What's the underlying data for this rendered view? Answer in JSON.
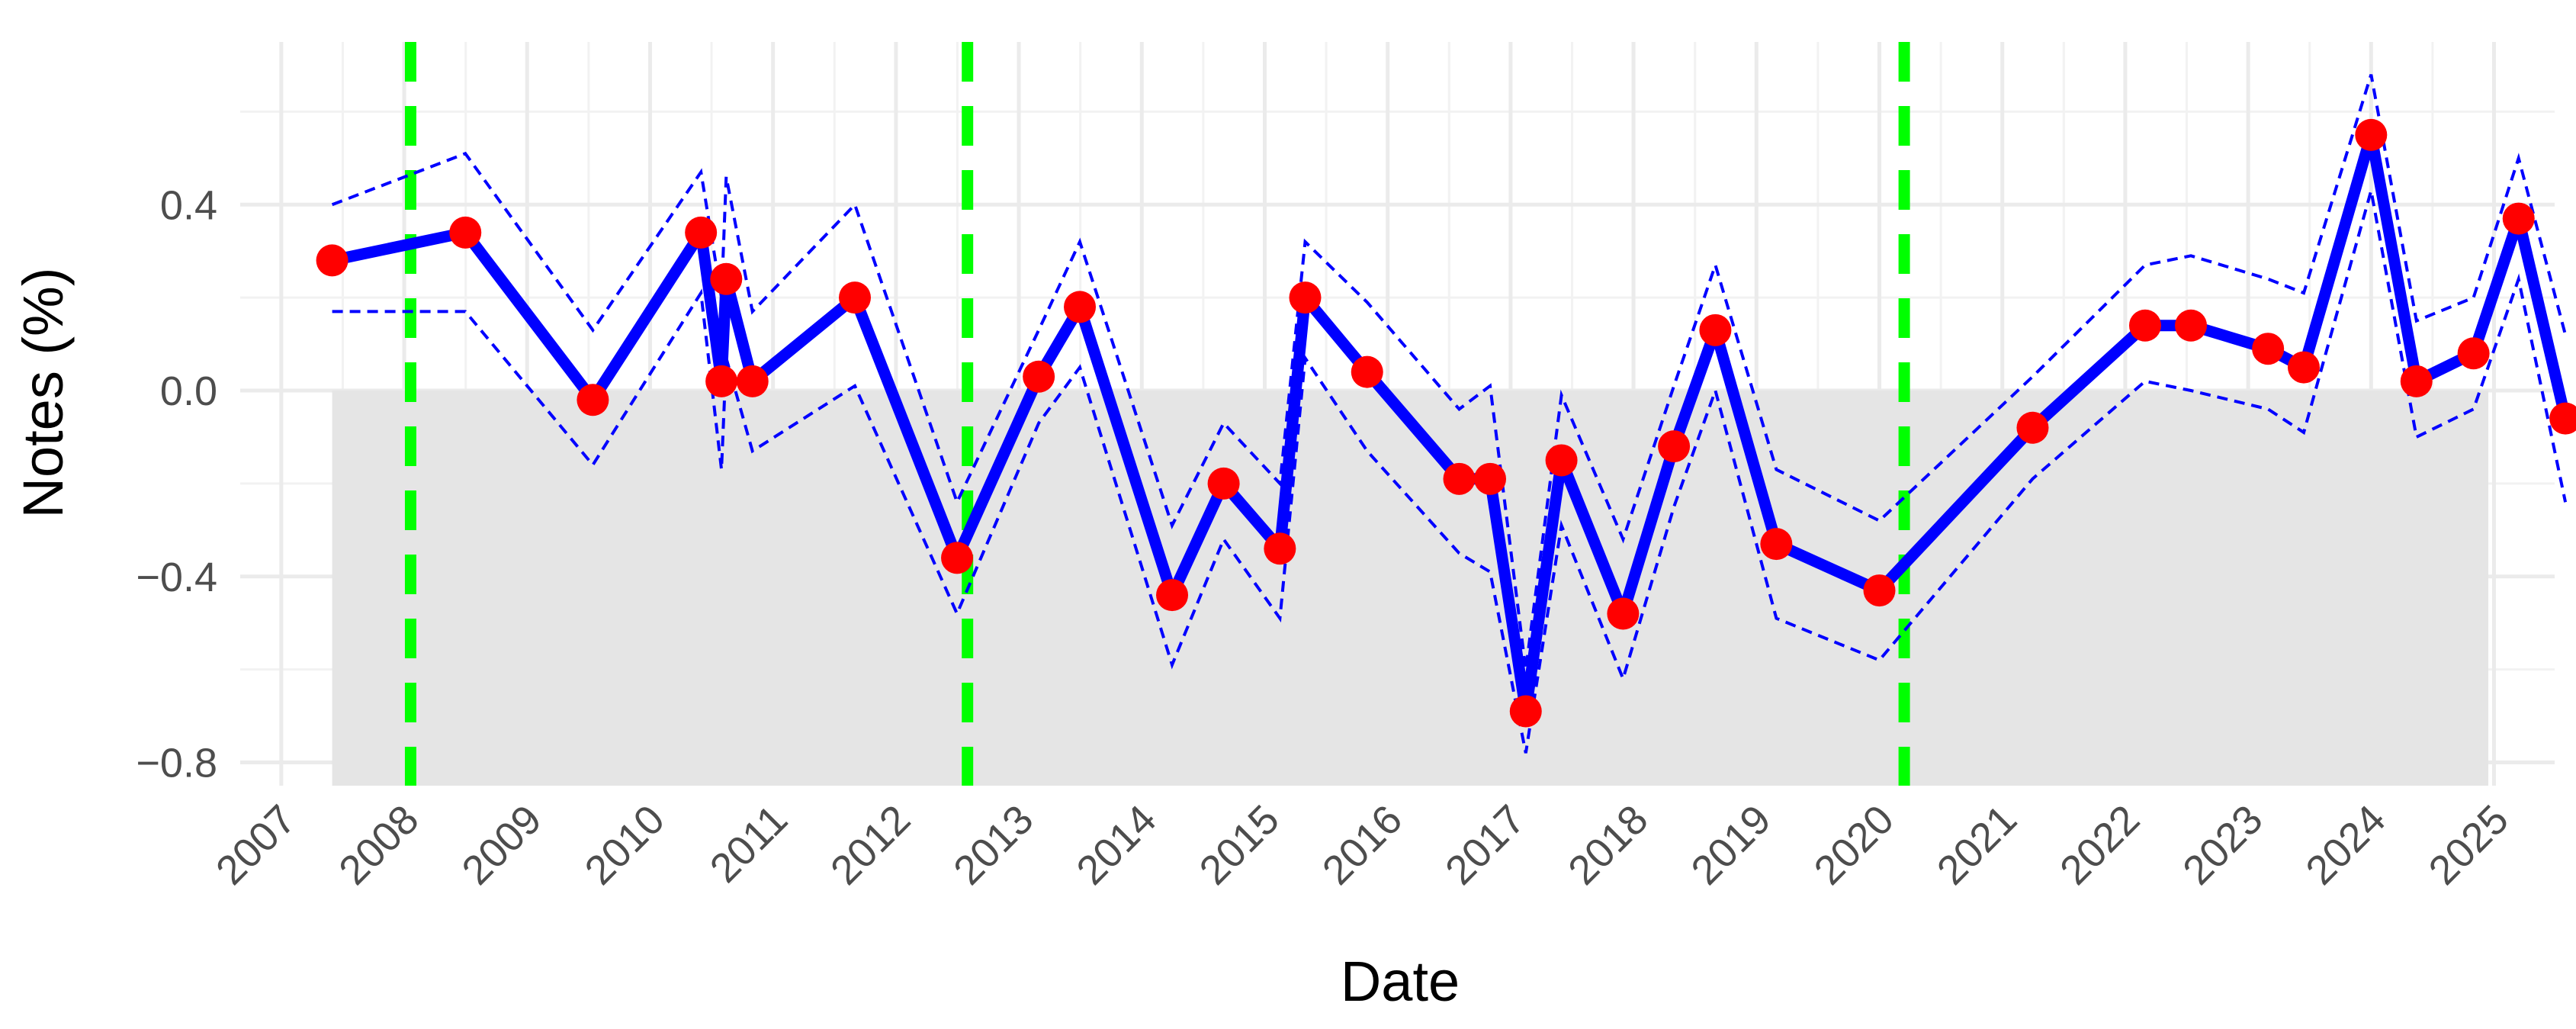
{
  "chart_data": {
    "type": "line",
    "title": "",
    "xlabel": "Date",
    "ylabel": "Notes (%)",
    "x_axis": {
      "type": "date",
      "range": [
        "2006-09-01",
        "2025-06-30"
      ],
      "ticks": [
        "2007",
        "2008",
        "2009",
        "2010",
        "2011",
        "2012",
        "2013",
        "2014",
        "2015",
        "2016",
        "2017",
        "2018",
        "2019",
        "2020",
        "2021",
        "2022",
        "2023",
        "2024",
        "2025"
      ]
    },
    "y_axis": {
      "range": [
        -0.85,
        0.75
      ],
      "ticks": [
        {
          "value": 0.4,
          "label": "0.4"
        },
        {
          "value": 0.0,
          "label": "0.0"
        },
        {
          "value": -0.4,
          "label": "−0.4"
        },
        {
          "value": -0.8,
          "label": "−0.8"
        }
      ]
    },
    "grid": true,
    "legend": "none",
    "shaded_region": {
      "y_from": -0.85,
      "y_to": 0.0,
      "x_from": "2007-06-01",
      "x_to": "2024-12-15",
      "color": "#e5e5e5"
    },
    "vertical_lines": [
      {
        "x": "2008-01-20",
        "color": "#00ff00",
        "style": "dashed"
      },
      {
        "x": "2012-08-01",
        "color": "#00ff00",
        "style": "dashed"
      },
      {
        "x": "2020-03-15",
        "color": "#00ff00",
        "style": "dashed"
      }
    ],
    "series": [
      {
        "role": "estimate",
        "color": "#0000ff",
        "marker_color": "#ff0000",
        "points": [
          [
            "2007-06-01",
            0.28
          ],
          [
            "2008-07-01",
            0.34
          ],
          [
            "2009-07-15",
            -0.02
          ],
          [
            "2010-06-01",
            0.34
          ],
          [
            "2010-08-01",
            0.02
          ],
          [
            "2010-08-15",
            0.24
          ],
          [
            "2010-11-01",
            0.02
          ],
          [
            "2011-09-01",
            0.2
          ],
          [
            "2012-07-01",
            -0.36
          ],
          [
            "2013-03-01",
            0.03
          ],
          [
            "2013-07-01",
            0.18
          ],
          [
            "2014-04-01",
            -0.44
          ],
          [
            "2014-09-01",
            -0.2
          ],
          [
            "2015-02-15",
            -0.34
          ],
          [
            "2015-05-01",
            0.2
          ],
          [
            "2015-11-01",
            0.04
          ],
          [
            "2016-08-01",
            -0.19
          ],
          [
            "2016-11-01",
            -0.19
          ],
          [
            "2017-02-15",
            -0.69
          ],
          [
            "2017-06-01",
            -0.15
          ],
          [
            "2017-12-01",
            -0.48
          ],
          [
            "2018-05-01",
            -0.12
          ],
          [
            "2018-09-01",
            0.13
          ],
          [
            "2019-03-01",
            -0.33
          ],
          [
            "2020-01-01",
            -0.43
          ],
          [
            "2021-04-01",
            -0.08
          ],
          [
            "2022-03-01",
            0.14
          ],
          [
            "2022-07-15",
            0.14
          ],
          [
            "2023-03-01",
            0.09
          ],
          [
            "2023-06-15",
            0.05
          ],
          [
            "2024-01-01",
            0.55
          ],
          [
            "2024-05-15",
            0.02
          ],
          [
            "2024-11-01",
            0.08
          ],
          [
            "2025-03-15",
            0.37
          ],
          [
            "2025-08-01",
            -0.06
          ]
        ]
      },
      {
        "role": "upper-band",
        "color": "#0000ff",
        "style": "dashed",
        "points": [
          [
            "2007-06-01",
            0.4
          ],
          [
            "2008-07-01",
            0.51
          ],
          [
            "2009-07-15",
            0.13
          ],
          [
            "2010-06-01",
            0.47
          ],
          [
            "2010-08-01",
            0.2
          ],
          [
            "2010-08-15",
            0.46
          ],
          [
            "2010-11-01",
            0.17
          ],
          [
            "2011-09-01",
            0.4
          ],
          [
            "2012-07-01",
            -0.24
          ],
          [
            "2013-03-01",
            0.13
          ],
          [
            "2013-07-01",
            0.32
          ],
          [
            "2014-04-01",
            -0.29
          ],
          [
            "2014-09-01",
            -0.07
          ],
          [
            "2015-02-15",
            -0.2
          ],
          [
            "2015-05-01",
            0.32
          ],
          [
            "2015-11-01",
            0.19
          ],
          [
            "2016-08-01",
            -0.04
          ],
          [
            "2016-11-01",
            0.01
          ],
          [
            "2017-02-15",
            -0.6
          ],
          [
            "2017-06-01",
            -0.01
          ],
          [
            "2017-12-01",
            -0.32
          ],
          [
            "2018-05-01",
            0.01
          ],
          [
            "2018-09-01",
            0.27
          ],
          [
            "2019-03-01",
            -0.17
          ],
          [
            "2020-01-01",
            -0.28
          ],
          [
            "2021-04-01",
            0.03
          ],
          [
            "2022-03-01",
            0.27
          ],
          [
            "2022-07-15",
            0.29
          ],
          [
            "2023-03-01",
            0.24
          ],
          [
            "2023-06-15",
            0.21
          ],
          [
            "2024-01-01",
            0.68
          ],
          [
            "2024-05-15",
            0.15
          ],
          [
            "2024-11-01",
            0.2
          ],
          [
            "2025-03-15",
            0.5
          ],
          [
            "2025-08-01",
            0.12
          ]
        ]
      },
      {
        "role": "lower-band",
        "color": "#0000ff",
        "style": "dashed",
        "points": [
          [
            "2007-06-01",
            0.17
          ],
          [
            "2008-07-01",
            0.17
          ],
          [
            "2009-07-15",
            -0.16
          ],
          [
            "2010-06-01",
            0.21
          ],
          [
            "2010-08-01",
            -0.17
          ],
          [
            "2010-08-15",
            0.07
          ],
          [
            "2010-11-01",
            -0.13
          ],
          [
            "2011-09-01",
            0.01
          ],
          [
            "2012-07-01",
            -0.48
          ],
          [
            "2013-03-01",
            -0.07
          ],
          [
            "2013-07-01",
            0.05
          ],
          [
            "2014-04-01",
            -0.59
          ],
          [
            "2014-09-01",
            -0.32
          ],
          [
            "2015-02-15",
            -0.49
          ],
          [
            "2015-05-01",
            0.07
          ],
          [
            "2015-11-01",
            -0.13
          ],
          [
            "2016-08-01",
            -0.35
          ],
          [
            "2016-11-01",
            -0.39
          ],
          [
            "2017-02-15",
            -0.78
          ],
          [
            "2017-06-01",
            -0.29
          ],
          [
            "2017-12-01",
            -0.62
          ],
          [
            "2018-05-01",
            -0.25
          ],
          [
            "2018-09-01",
            0.0
          ],
          [
            "2019-03-01",
            -0.49
          ],
          [
            "2020-01-01",
            -0.58
          ],
          [
            "2021-04-01",
            -0.19
          ],
          [
            "2022-03-01",
            0.02
          ],
          [
            "2022-07-15",
            0.0
          ],
          [
            "2023-03-01",
            -0.04
          ],
          [
            "2023-06-15",
            -0.09
          ],
          [
            "2024-01-01",
            0.43
          ],
          [
            "2024-05-15",
            -0.1
          ],
          [
            "2024-11-01",
            -0.04
          ],
          [
            "2025-03-15",
            0.24
          ],
          [
            "2025-08-01",
            -0.24
          ]
        ]
      }
    ]
  }
}
